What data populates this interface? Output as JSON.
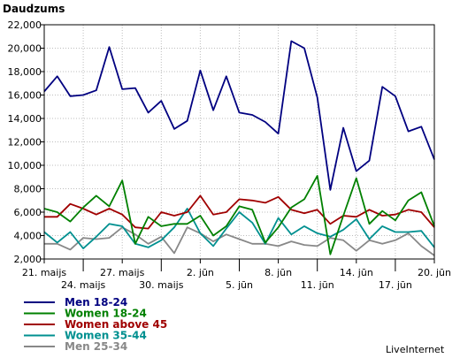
{
  "chart_data": {
    "type": "line",
    "ylabel": "Daudzums",
    "ylim": [
      2000,
      22000
    ],
    "yticks": [
      2000,
      4000,
      6000,
      8000,
      10000,
      12000,
      14000,
      16000,
      18000,
      20000,
      22000
    ],
    "ytick_labels": [
      "2,000",
      "4,000",
      "6,000",
      "8,000",
      "10,000",
      "12,000",
      "14,000",
      "16,000",
      "18,000",
      "20,000",
      "22,000"
    ],
    "grid": true,
    "x_ticks": [
      {
        "index": 0,
        "label": "21. maijs",
        "row": 1
      },
      {
        "index": 3,
        "label": "24. maijs",
        "row": 2
      },
      {
        "index": 6,
        "label": "27. maijs",
        "row": 1
      },
      {
        "index": 9,
        "label": "30. maijs",
        "row": 2
      },
      {
        "index": 12,
        "label": "2. jūn",
        "row": 1
      },
      {
        "index": 15,
        "label": "5. jūn",
        "row": 2
      },
      {
        "index": 18,
        "label": "8. jūn",
        "row": 1
      },
      {
        "index": 21,
        "label": "11. jūn",
        "row": 2
      },
      {
        "index": 24,
        "label": "14. jūn",
        "row": 1
      },
      {
        "index": 27,
        "label": "17. jūn",
        "row": 2
      },
      {
        "index": 30,
        "label": "20. jūn",
        "row": 1
      }
    ],
    "series": [
      {
        "name": "Men 18-24",
        "color": "#000080",
        "values": [
          16300,
          17600,
          15900,
          16000,
          16400,
          20100,
          16500,
          16600,
          14500,
          15500,
          13100,
          13800,
          18100,
          14700,
          17600,
          14500,
          14300,
          13700,
          12700,
          20600,
          20000,
          15800,
          7900,
          13200,
          9500,
          10400,
          16700,
          15900,
          12900,
          13300,
          10500
        ]
      },
      {
        "name": "Women 18-24",
        "color": "#008000",
        "values": [
          6300,
          6000,
          5200,
          6400,
          7400,
          6500,
          8700,
          3300,
          5600,
          4800,
          5000,
          5000,
          5700,
          4000,
          4800,
          6500,
          6200,
          3400,
          4700,
          6400,
          7100,
          9100,
          2400,
          5700,
          8900,
          5000,
          6100,
          5300,
          7000,
          7700,
          4800
        ]
      },
      {
        "name": "Women above 45",
        "color": "#a00000",
        "values": [
          5600,
          5600,
          6700,
          6300,
          5800,
          6300,
          5800,
          4700,
          4600,
          6000,
          5700,
          6000,
          7400,
          5800,
          6000,
          7100,
          7000,
          6800,
          7300,
          6200,
          5900,
          6200,
          5000,
          5700,
          5600,
          6200,
          5700,
          5800,
          6200,
          6000,
          4700
        ]
      },
      {
        "name": "Women 35-44",
        "color": "#009090",
        "values": [
          4300,
          3400,
          4300,
          2900,
          3900,
          5000,
          4800,
          3300,
          3000,
          3600,
          4700,
          6300,
          4200,
          3100,
          4600,
          6000,
          5100,
          3300,
          5500,
          4100,
          4800,
          4200,
          3900,
          4500,
          5400,
          3700,
          4800,
          4300,
          4300,
          4400,
          3000
        ]
      },
      {
        "name": "Men 25-34",
        "color": "#888888",
        "values": [
          3300,
          3300,
          2800,
          3800,
          3700,
          3800,
          4700,
          4100,
          3300,
          3900,
          2500,
          4700,
          4200,
          3500,
          4100,
          3700,
          3300,
          3300,
          3100,
          3500,
          3200,
          3100,
          3800,
          3600,
          2700,
          3600,
          3300,
          3600,
          4200,
          3100,
          2300
        ]
      }
    ]
  },
  "source": "LiveInternet"
}
